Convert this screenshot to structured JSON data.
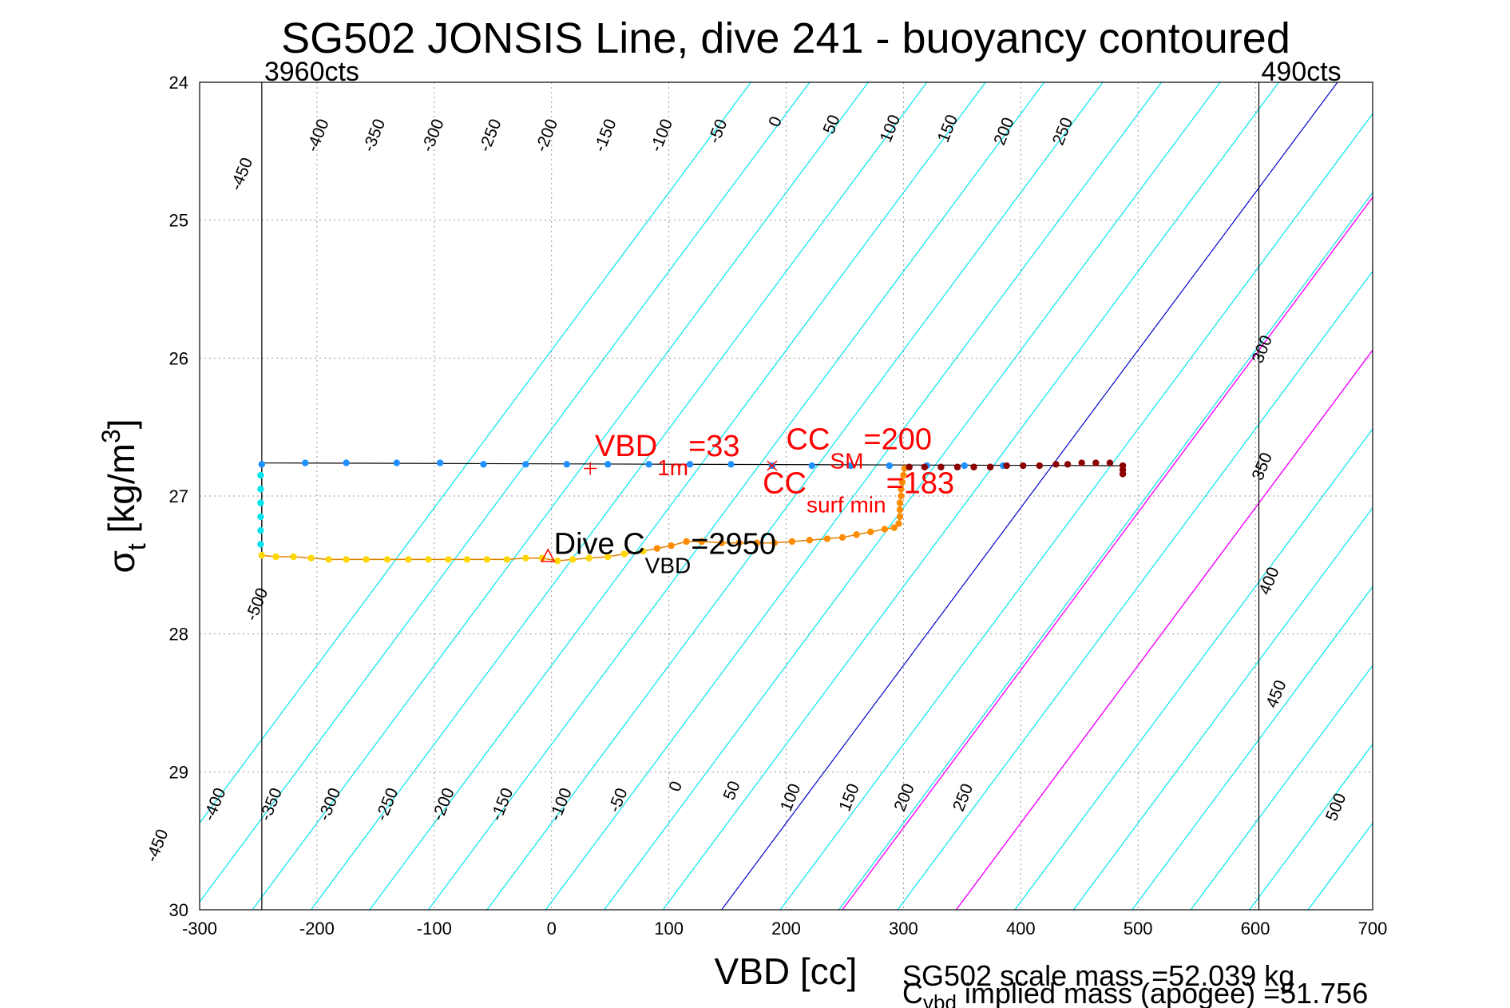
{
  "chart_data": {
    "type": "scatter",
    "title": "SG502 JONSIS Line, dive 241 - buoyancy contoured",
    "xlabel": "VBD [cc]",
    "ylabel": {
      "main": "σ",
      "sub": "t",
      "rest": " [kg/m",
      "sup": "3",
      "end": "]"
    },
    "xlim": [
      -300,
      700
    ],
    "ylim": [
      24,
      30
    ],
    "y_reversed": true,
    "grid": true,
    "x_ticks": [
      "-300",
      "-200",
      "-100",
      "0",
      "100",
      "200",
      "300",
      "400",
      "500",
      "600",
      "700"
    ],
    "y_ticks": [
      "24",
      "25",
      "26",
      "27",
      "28",
      "29",
      "30"
    ],
    "vbd_limits": [
      {
        "x": -247,
        "label": "3960cts"
      },
      {
        "x": 603,
        "label": "490cts"
      }
    ],
    "buoyancy_contours": {
      "slope_cc_per_sigma": 87.5,
      "levels": [
        -500,
        -450,
        -400,
        -350,
        -300,
        -250,
        -200,
        -150,
        -100,
        -50,
        0,
        50,
        100,
        150,
        200,
        250,
        300,
        350,
        400,
        450,
        500
      ],
      "zero_at_sigma30": 145,
      "colors": {
        "default": "#00e5ee",
        "zero": "#0000cc",
        "highlight": "#ff00ff"
      },
      "highlight_lines_sigma30": [
        248,
        345
      ],
      "top_labels": [
        {
          "text": "-450",
          "x": -260,
          "y": 24.68
        },
        {
          "text": "-400",
          "x": -195,
          "y": 24.4
        },
        {
          "text": "-350",
          "x": -147,
          "y": 24.4
        },
        {
          "text": "-300",
          "x": -97,
          "y": 24.4
        },
        {
          "text": "-250",
          "x": -48,
          "y": 24.4
        },
        {
          "text": "-200",
          "x": 0,
          "y": 24.4
        },
        {
          "text": "-150",
          "x": 50,
          "y": 24.4
        },
        {
          "text": "-100",
          "x": 98,
          "y": 24.4
        },
        {
          "text": "-50",
          "x": 146,
          "y": 24.37
        },
        {
          "text": "0",
          "x": 195,
          "y": 24.3
        },
        {
          "text": "50",
          "x": 243,
          "y": 24.32
        },
        {
          "text": "100",
          "x": 293,
          "y": 24.35
        },
        {
          "text": "150",
          "x": 342,
          "y": 24.35
        },
        {
          "text": "200",
          "x": 390,
          "y": 24.37
        },
        {
          "text": "250",
          "x": 440,
          "y": 24.37
        }
      ],
      "bottom_labels": [
        {
          "text": "-500",
          "x": -247,
          "y": 27.8
        },
        {
          "text": "-450",
          "x": -332,
          "y": 29.55
        },
        {
          "text": "-400",
          "x": -283,
          "y": 29.25
        },
        {
          "text": "-350",
          "x": -235,
          "y": 29.25
        },
        {
          "text": "-300",
          "x": -185,
          "y": 29.25
        },
        {
          "text": "-250",
          "x": -136,
          "y": 29.25
        },
        {
          "text": "-200",
          "x": -88,
          "y": 29.25
        },
        {
          "text": "-150",
          "x": -38,
          "y": 29.25
        },
        {
          "text": "-100",
          "x": 12,
          "y": 29.25
        },
        {
          "text": "-50",
          "x": 61,
          "y": 29.22
        },
        {
          "text": "0",
          "x": 110,
          "y": 29.12
        },
        {
          "text": "50",
          "x": 158,
          "y": 29.15
        },
        {
          "text": "100",
          "x": 208,
          "y": 29.2
        },
        {
          "text": "150",
          "x": 258,
          "y": 29.2
        },
        {
          "text": "200",
          "x": 305,
          "y": 29.2
        },
        {
          "text": "250",
          "x": 355,
          "y": 29.2
        },
        {
          "text": "500",
          "x": 673,
          "y": 29.27
        }
      ],
      "right_labels": [
        {
          "text": "300",
          "x": 610,
          "y": 25.95
        },
        {
          "text": "350",
          "x": 610,
          "y": 26.8
        },
        {
          "text": "400",
          "x": 616,
          "y": 27.63
        },
        {
          "text": "450",
          "x": 622,
          "y": 28.45
        }
      ]
    },
    "series": [
      {
        "name": "",
        "color": "#1e90ff",
        "points": [
          [
            -247,
            26.77
          ],
          [
            -210,
            26.76
          ],
          [
            -175,
            26.76
          ],
          [
            -132,
            26.76
          ],
          [
            -95,
            26.76
          ],
          [
            -58,
            26.77
          ],
          [
            -22,
            26.77
          ],
          [
            13,
            26.77
          ],
          [
            48,
            26.77
          ],
          [
            83,
            26.77
          ],
          [
            118,
            26.77
          ],
          [
            153,
            26.77
          ],
          [
            188,
            26.78
          ],
          [
            222,
            26.78
          ],
          [
            255,
            26.78
          ],
          [
            288,
            26.78
          ],
          [
            320,
            26.78
          ],
          [
            352,
            26.78
          ],
          [
            385,
            26.78
          ]
        ]
      },
      {
        "name": "",
        "color": "#00e5ee",
        "points": [
          [
            -248,
            26.85
          ],
          [
            -248,
            26.95
          ],
          [
            -248,
            27.05
          ],
          [
            -248,
            27.15
          ],
          [
            -248,
            27.25
          ],
          [
            -248,
            27.35
          ]
        ]
      },
      {
        "name": "",
        "color": "#ffd700",
        "points": [
          [
            -247,
            27.43
          ],
          [
            -235,
            27.44
          ],
          [
            -220,
            27.44
          ],
          [
            -205,
            27.45
          ],
          [
            -190,
            27.46
          ],
          [
            -175,
            27.46
          ],
          [
            -158,
            27.46
          ],
          [
            -140,
            27.46
          ],
          [
            -122,
            27.46
          ],
          [
            -105,
            27.46
          ],
          [
            -88,
            27.46
          ],
          [
            -72,
            27.46
          ],
          [
            -55,
            27.46
          ],
          [
            -38,
            27.46
          ],
          [
            -22,
            27.45
          ],
          [
            -8,
            27.45
          ],
          [
            5,
            27.47
          ],
          [
            18,
            27.46
          ],
          [
            32,
            27.45
          ],
          [
            48,
            27.44
          ],
          [
            62,
            27.42
          ],
          [
            78,
            27.4
          ]
        ]
      },
      {
        "name": "",
        "color": "#ff8c00",
        "points": [
          [
            90,
            27.38
          ],
          [
            102,
            27.36
          ],
          [
            115,
            27.33
          ],
          [
            128,
            27.33
          ],
          [
            145,
            27.34
          ],
          [
            160,
            27.34
          ],
          [
            175,
            27.34
          ],
          [
            190,
            27.34
          ],
          [
            205,
            27.33
          ],
          [
            220,
            27.32
          ],
          [
            235,
            27.31
          ],
          [
            248,
            27.3
          ],
          [
            260,
            27.28
          ],
          [
            272,
            27.26
          ],
          [
            284,
            27.24
          ],
          [
            292,
            27.23
          ],
          [
            296,
            27.2
          ],
          [
            297,
            27.15
          ],
          [
            297,
            27.1
          ],
          [
            297,
            27.05
          ],
          [
            298,
            27.0
          ],
          [
            298,
            26.95
          ],
          [
            299,
            26.9
          ],
          [
            300,
            26.85
          ],
          [
            301,
            26.8
          ]
        ]
      },
      {
        "name": "",
        "color": "#8b0000",
        "points": [
          [
            305,
            26.79
          ],
          [
            318,
            26.79
          ],
          [
            332,
            26.79
          ],
          [
            346,
            26.79
          ],
          [
            360,
            26.79
          ],
          [
            374,
            26.79
          ],
          [
            388,
            26.78
          ],
          [
            402,
            26.78
          ],
          [
            416,
            26.78
          ],
          [
            430,
            26.77
          ],
          [
            440,
            26.77
          ],
          [
            452,
            26.76
          ],
          [
            464,
            26.76
          ],
          [
            476,
            26.76
          ],
          [
            487,
            26.78
          ],
          [
            487,
            26.81
          ],
          [
            487,
            26.84
          ]
        ]
      }
    ],
    "profile_lines": [
      {
        "color": "#000000",
        "points": [
          [
            -247,
            26.76
          ],
          [
            487,
            26.78
          ]
        ]
      },
      {
        "color": "#000000",
        "points": [
          [
            -247,
            26.76
          ],
          [
            -247,
            27.44
          ]
        ]
      }
    ],
    "markers": [
      {
        "symbol": "+",
        "color": "#ff0000",
        "x": 33,
        "y": 26.8
      },
      {
        "symbol": "x",
        "color": "#ff0000",
        "x": 188,
        "y": 26.78
      },
      {
        "symbol": "triangle",
        "color": "#ff0000",
        "x": -3,
        "y": 27.44
      }
    ],
    "annotations": [
      {
        "id": "vbd1m",
        "color": "#ff0000",
        "x": 37,
        "y": 26.71,
        "base": "VBD",
        "sub": "1m",
        "rest": "=33"
      },
      {
        "id": "ccsm",
        "color": "#ff0000",
        "x": 200,
        "y": 26.66,
        "base": "CC",
        "sub": "SM",
        "rest": "=200"
      },
      {
        "id": "ccsurf",
        "color": "#ff0000",
        "x": 180,
        "y": 26.98,
        "base": "CC",
        "sub": "surf min",
        "rest": "=183"
      },
      {
        "id": "divec",
        "color": "#000000",
        "x": 2,
        "y": 27.42,
        "base": "Dive C",
        "sub": "VBD",
        "rest": "=2950"
      }
    ],
    "footer": {
      "line1": "SG502 scale mass =52.039 kg",
      "line2_base": "C",
      "line2_sub": "vbd",
      "line2_rest": " implied mass (apogee) =51.756"
    }
  }
}
